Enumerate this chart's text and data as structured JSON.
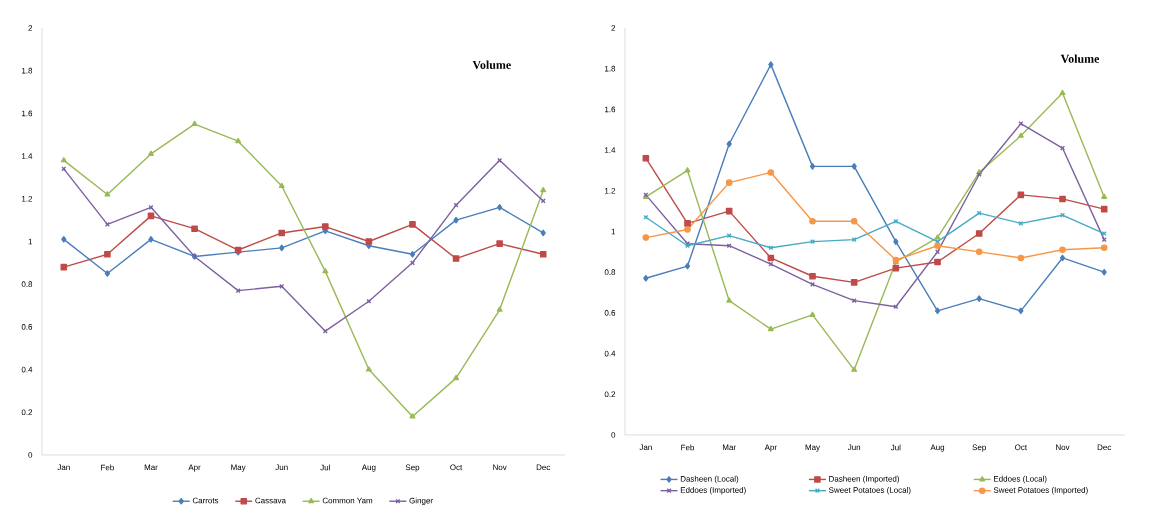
{
  "chart_data": [
    {
      "type": "line",
      "title": "Volume",
      "categories": [
        "Jan",
        "Feb",
        "Mar",
        "Apr",
        "May",
        "Jun",
        "Jul",
        "Aug",
        "Sep",
        "Oct",
        "Nov",
        "Dec"
      ],
      "ylim": [
        0,
        2
      ],
      "yticks": [
        0,
        0.2,
        0.4,
        0.6,
        0.8,
        1,
        1.2,
        1.4,
        1.6,
        1.8,
        2
      ],
      "grid": false,
      "legend": "bottom",
      "series": [
        {
          "name": "Carrots",
          "color": "#4a7ebb",
          "marker": "diamond",
          "values": [
            1.01,
            0.85,
            1.01,
            0.93,
            0.95,
            0.97,
            1.05,
            0.98,
            0.94,
            1.1,
            1.16,
            1.04
          ]
        },
        {
          "name": "Cassava",
          "color": "#be4b48",
          "marker": "square",
          "values": [
            0.88,
            0.94,
            1.12,
            1.06,
            0.96,
            1.04,
            1.07,
            1.0,
            1.08,
            0.92,
            0.99,
            0.94
          ]
        },
        {
          "name": "Common Yam",
          "color": "#98b954",
          "marker": "triangle",
          "values": [
            1.38,
            1.22,
            1.41,
            1.55,
            1.47,
            1.26,
            0.86,
            0.4,
            0.18,
            0.36,
            0.68,
            1.24
          ]
        },
        {
          "name": "Ginger",
          "color": "#7d60a0",
          "marker": "cross",
          "values": [
            1.34,
            1.08,
            1.16,
            0.93,
            0.77,
            0.79,
            0.58,
            0.72,
            0.9,
            1.17,
            1.38,
            1.19
          ]
        }
      ]
    },
    {
      "type": "line",
      "title": "Volume",
      "categories": [
        "Jan",
        "Feb",
        "Mar",
        "Apr",
        "May",
        "Jun",
        "Jul",
        "Aug",
        "Sep",
        "Oct",
        "Nov",
        "Dec"
      ],
      "ylim": [
        0,
        2
      ],
      "yticks": [
        0,
        0.2,
        0.4,
        0.6,
        0.8,
        1,
        1.2,
        1.4,
        1.6,
        1.8,
        2
      ],
      "grid": false,
      "legend": "bottom",
      "series": [
        {
          "name": "Dasheen (Local)",
          "color": "#4a7ebb",
          "marker": "diamond",
          "values": [
            0.77,
            0.83,
            1.43,
            1.82,
            1.32,
            1.32,
            0.95,
            0.61,
            0.67,
            0.61,
            0.87,
            0.8
          ]
        },
        {
          "name": "Dasheen (Imported)",
          "color": "#be4b48",
          "marker": "square",
          "values": [
            1.36,
            1.04,
            1.1,
            0.87,
            0.78,
            0.75,
            0.82,
            0.85,
            0.99,
            1.18,
            1.16,
            1.11
          ]
        },
        {
          "name": "Eddoes (Local)",
          "color": "#98b954",
          "marker": "triangle",
          "values": [
            1.17,
            1.3,
            0.66,
            0.52,
            0.59,
            0.32,
            0.85,
            0.97,
            1.29,
            1.47,
            1.68,
            1.17
          ]
        },
        {
          "name": "Eddoes (Imported)",
          "color": "#7d60a0",
          "marker": "cross",
          "values": [
            1.18,
            0.94,
            0.93,
            0.84,
            0.74,
            0.66,
            0.63,
            0.9,
            1.28,
            1.53,
            1.41,
            0.96
          ]
        },
        {
          "name": "Sweet Potatoes (Local)",
          "color": "#46aac5",
          "marker": "cross",
          "values": [
            1.07,
            0.93,
            0.98,
            0.92,
            0.95,
            0.96,
            1.05,
            0.95,
            1.09,
            1.04,
            1.08,
            0.99
          ]
        },
        {
          "name": "Sweet Potatoes (Imported)",
          "color": "#f79646",
          "marker": "circle",
          "values": [
            0.97,
            1.01,
            1.24,
            1.29,
            1.05,
            1.05,
            0.86,
            0.93,
            0.9,
            0.87,
            0.91,
            0.92
          ]
        }
      ]
    }
  ]
}
